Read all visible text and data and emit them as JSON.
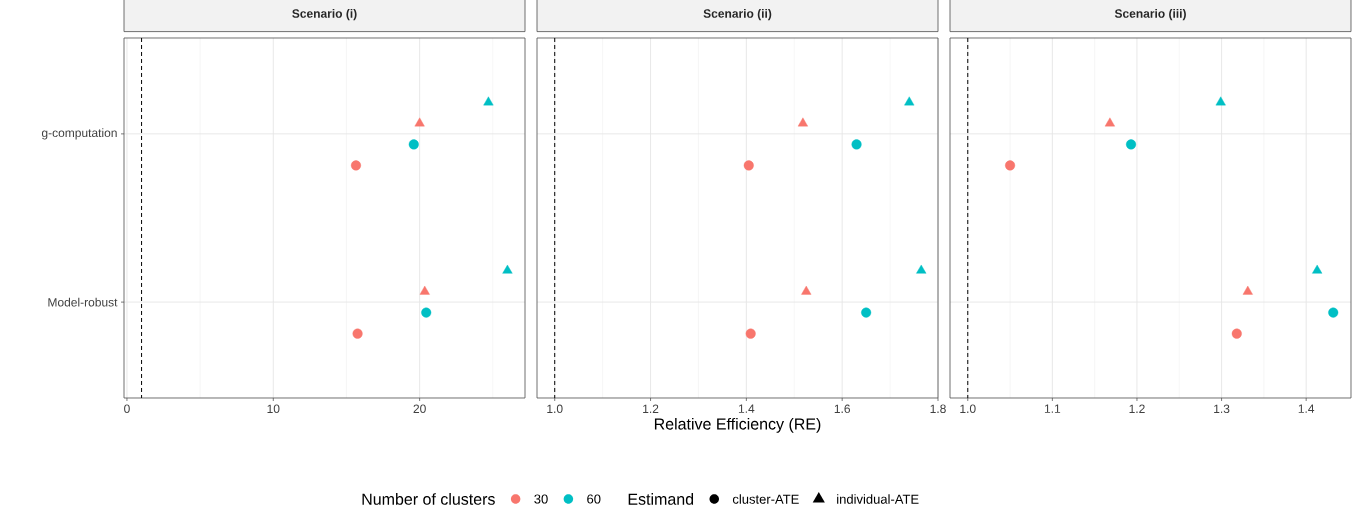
{
  "chart_data": [
    {
      "type": "scatter",
      "title": "Scenario (i)",
      "orientation": "horizontal",
      "categories": [
        "g-computation",
        "Model-robust"
      ],
      "xlim": [
        -0.2,
        27.2
      ],
      "xticks": [
        0,
        10,
        20,
        {
          "value": 5,
          "label": null
        },
        {
          "value": 15,
          "label": null
        },
        {
          "value": 25,
          "label": null
        }
      ],
      "grid": true,
      "ref_lines": [
        {
          "axis": "x",
          "value": 1,
          "color": "#000000",
          "line_style": "dashed"
        }
      ],
      "series": [
        {
          "color": "#F8766D",
          "marker": "circle",
          "values": [
            15.65,
            15.76
          ]
        },
        {
          "color": "#00BFC4",
          "marker": "circle",
          "values": [
            19.6,
            20.45
          ]
        },
        {
          "color": "#F8766D",
          "marker": "triangle",
          "values": [
            20.0,
            20.35
          ]
        },
        {
          "color": "#00BFC4",
          "marker": "triangle",
          "values": [
            24.7,
            26.0
          ]
        }
      ]
    },
    {
      "type": "scatter",
      "title": "Scenario (ii)",
      "orientation": "horizontal",
      "categories": [
        null,
        null
      ],
      "xlim": [
        0.963,
        1.8
      ],
      "xticks": [
        {
          "value": 1,
          "label": "1.0"
        },
        {
          "value": 1.2,
          "label": "1.2"
        },
        {
          "value": 1.4,
          "label": "1.4"
        },
        {
          "value": 1.6,
          "label": "1.6"
        },
        {
          "value": 1.8,
          "label": "1.8"
        },
        {
          "value": 1.1,
          "label": null
        },
        {
          "value": 1.3,
          "label": null
        },
        {
          "value": 1.5,
          "label": null
        },
        {
          "value": 1.7,
          "label": null
        }
      ],
      "grid": true,
      "tick_labels": "x",
      "xlabel": "Relative Efficiency (RE)",
      "legend": "bottom",
      "legend_title": "Number of clusters",
      "annotations": [
        "Estimand",
        "cluster-ATE",
        "individual-ATE"
      ],
      "ref_lines": [
        {
          "axis": "x",
          "value": 1,
          "color": "#000000",
          "line_style": "dashed"
        }
      ],
      "series": [
        {
          "name": "30",
          "color": "#F8766D",
          "marker": "circle",
          "values": [
            1.405,
            1.409
          ]
        },
        {
          "name": "60",
          "color": "#00BFC4",
          "marker": "circle",
          "values": [
            1.63,
            1.65
          ]
        },
        {
          "color": "#F8766D",
          "marker": "triangle",
          "values": [
            1.518,
            1.525
          ]
        },
        {
          "color": "#00BFC4",
          "marker": "triangle",
          "values": [
            1.74,
            1.765
          ]
        }
      ]
    },
    {
      "type": "scatter",
      "title": "Scenario (iii)",
      "orientation": "horizontal",
      "categories": [
        null,
        null
      ],
      "xlim": [
        0.979,
        1.453
      ],
      "xticks": [
        {
          "value": 1,
          "label": "1.0"
        },
        {
          "value": 1.1,
          "label": "1.1"
        },
        {
          "value": 1.2,
          "label": "1.2"
        },
        {
          "value": 1.3,
          "label": "1.3"
        },
        {
          "value": 1.4,
          "label": "1.4"
        },
        {
          "value": 1.05,
          "label": null
        },
        {
          "value": 1.15,
          "label": null
        },
        {
          "value": 1.25,
          "label": null
        },
        {
          "value": 1.35,
          "label": null
        }
      ],
      "grid": true,
      "tick_labels": "x",
      "ref_lines": [
        {
          "axis": "x",
          "value": 1,
          "color": "#000000",
          "line_style": "dashed"
        }
      ],
      "series": [
        {
          "color": "#F8766D",
          "marker": "circle",
          "values": [
            1.05,
            1.318
          ]
        },
        {
          "color": "#00BFC4",
          "marker": "circle",
          "values": [
            1.193,
            1.432
          ]
        },
        {
          "color": "#F8766D",
          "marker": "triangle",
          "values": [
            1.168,
            1.331
          ]
        },
        {
          "color": "#00BFC4",
          "marker": "triangle",
          "values": [
            1.299,
            1.413
          ]
        }
      ]
    }
  ]
}
